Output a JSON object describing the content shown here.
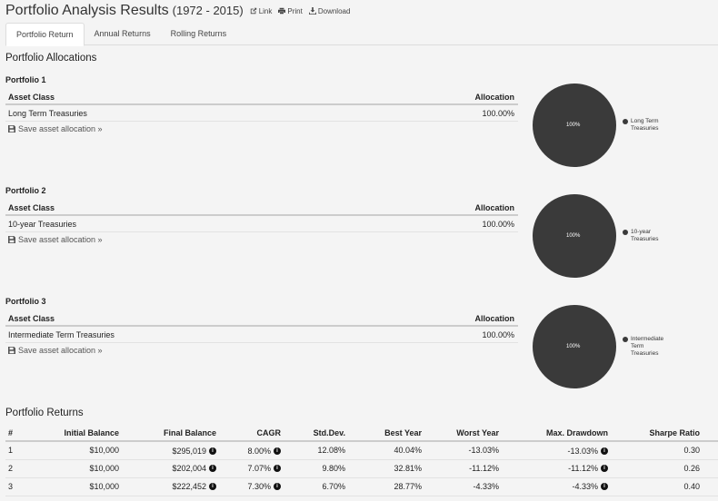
{
  "header": {
    "title": "Portfolio Analysis Results",
    "period": "(1972 - 2015)",
    "link_label": "Link",
    "print_label": "Print",
    "download_label": "Download"
  },
  "tabs": [
    {
      "label": "Portfolio Return",
      "active": true
    },
    {
      "label": "Annual Returns",
      "active": false
    },
    {
      "label": "Rolling Returns",
      "active": false
    }
  ],
  "allocations": {
    "section_title": "Portfolio Allocations",
    "col_asset": "Asset Class",
    "col_allocation": "Allocation",
    "save_label": "Save asset allocation »",
    "portfolios": [
      {
        "name": "Portfolio 1",
        "asset": "Long Term Treasuries",
        "allocation": "100.00%",
        "pie_label": "100%",
        "legend": [
          "Long Term",
          "Treasuries"
        ]
      },
      {
        "name": "Portfolio 2",
        "asset": "10-year Treasuries",
        "allocation": "100.00%",
        "pie_label": "100%",
        "legend": [
          "10-year",
          "Treasuries"
        ]
      },
      {
        "name": "Portfolio 3",
        "asset": "Intermediate Term Treasuries",
        "allocation": "100.00%",
        "pie_label": "100%",
        "legend": [
          "Intermediate",
          "Term",
          "Treasuries"
        ]
      }
    ]
  },
  "returns": {
    "section_title": "Portfolio Returns",
    "headers": [
      "#",
      "Initial Balance",
      "Final Balance",
      "CAGR",
      "Std.Dev.",
      "Best Year",
      "Worst Year",
      "Max. Drawdown",
      "Sharpe Ratio"
    ],
    "rows": [
      {
        "num": "1",
        "initial": "$10,000",
        "final": "$295,019",
        "cagr": "8.00%",
        "stddev": "12.08%",
        "best": "40.04%",
        "worst": "-13.03%",
        "drawdown": "-13.03%",
        "sharpe": "0.30"
      },
      {
        "num": "2",
        "initial": "$10,000",
        "final": "$202,004",
        "cagr": "7.07%",
        "stddev": "9.80%",
        "best": "32.81%",
        "worst": "-11.12%",
        "drawdown": "-11.12%",
        "sharpe": "0.26"
      },
      {
        "num": "3",
        "initial": "$10,000",
        "final": "$222,452",
        "cagr": "7.30%",
        "stddev": "6.70%",
        "best": "28.77%",
        "worst": "-4.33%",
        "drawdown": "-4.33%",
        "sharpe": "0.40"
      }
    ]
  },
  "colors": {
    "pie": "#3a3a3a",
    "background": "#f4f4f4"
  }
}
